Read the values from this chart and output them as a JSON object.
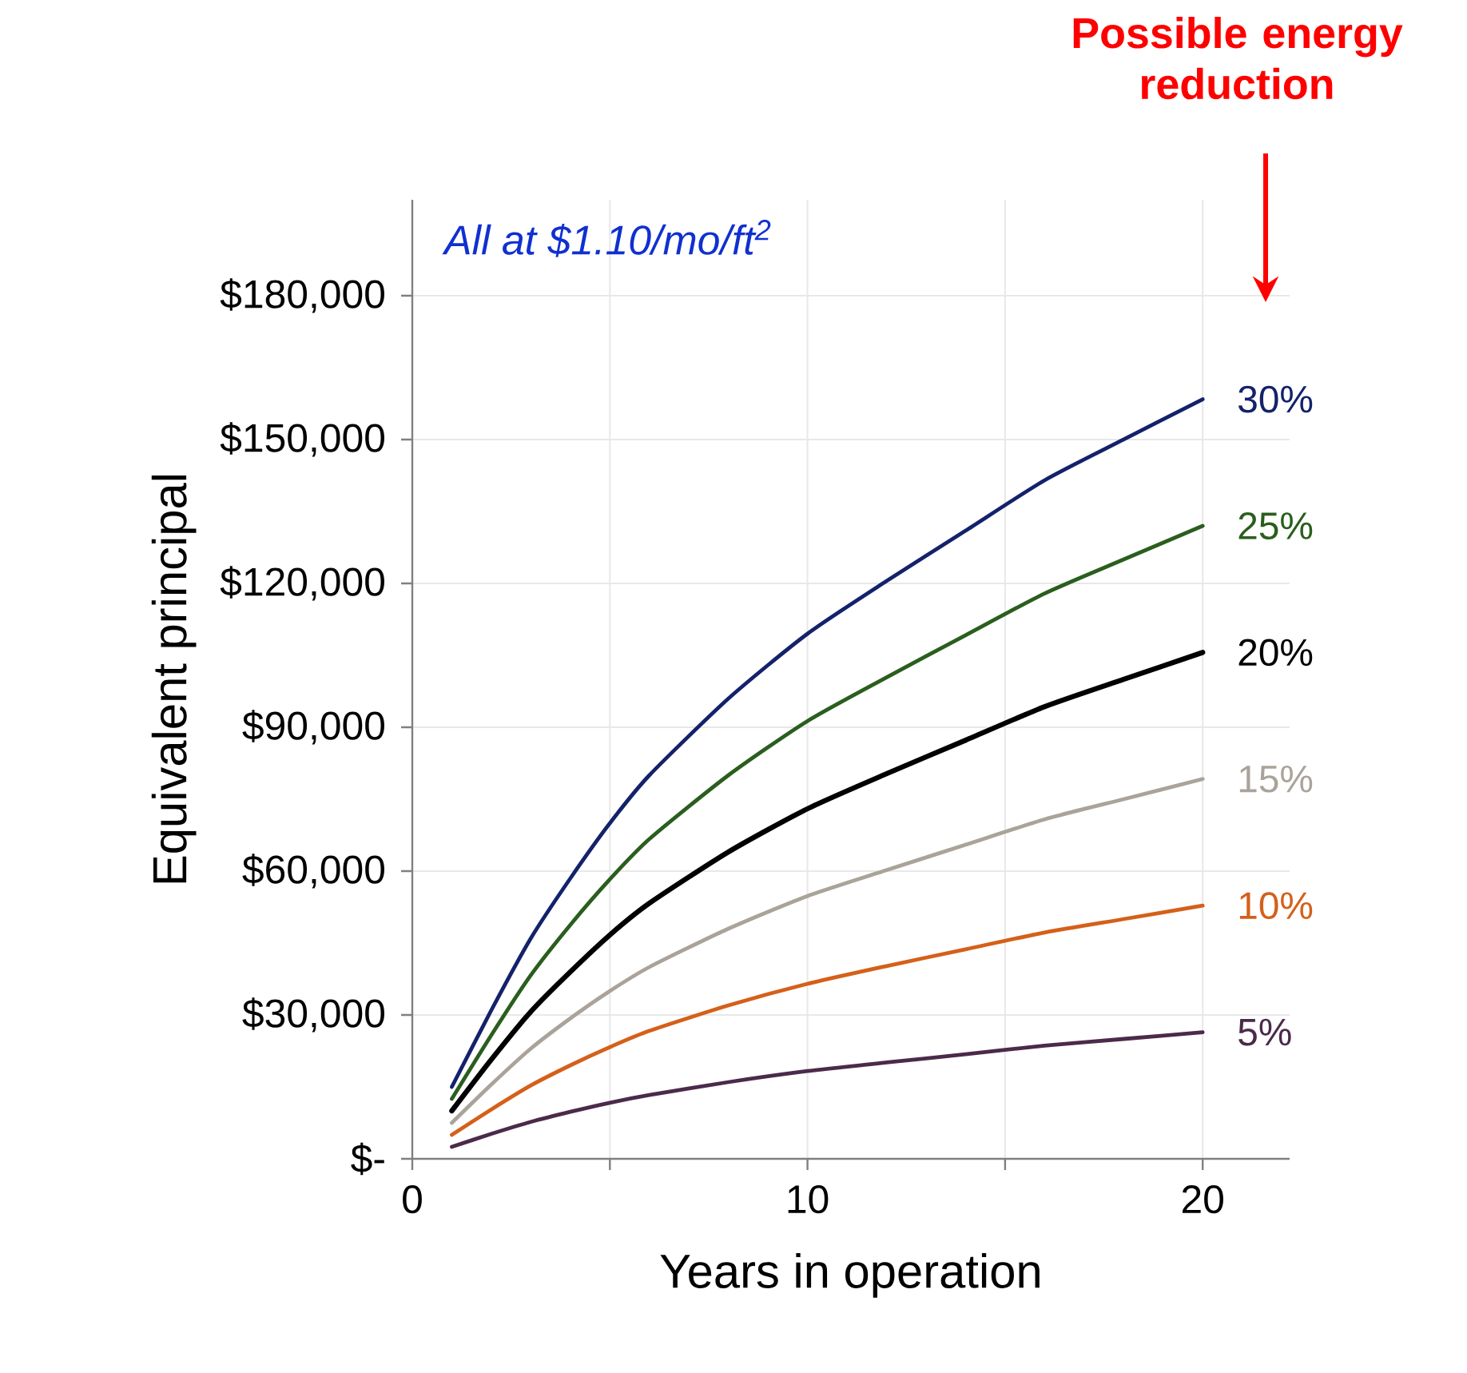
{
  "chart_data": {
    "type": "line",
    "xlabel": "Years in operation",
    "ylabel": "Equivalent principal",
    "xlim": [
      0,
      22.2
    ],
    "ylim": [
      0,
      200000
    ],
    "xticks": [
      0,
      {
        "value": 5,
        "label": null
      },
      10,
      {
        "value": 15,
        "label": null
      },
      20
    ],
    "yticks": [
      {
        "value": 0,
        "label": "$-"
      },
      {
        "value": 30000,
        "label": "$30,000"
      },
      {
        "value": 60000,
        "label": "$60,000"
      },
      {
        "value": 90000,
        "label": "$90,000"
      },
      {
        "value": 120000,
        "label": "$120,000"
      },
      {
        "value": 150000,
        "label": "$150,000"
      },
      {
        "value": 180000,
        "label": "$180,000"
      }
    ],
    "grid": true,
    "legend": false,
    "marker": "none",
    "line_style": "solid",
    "x": [
      1,
      2,
      3,
      4,
      5,
      6,
      8,
      10,
      12,
      14,
      16,
      18,
      20
    ],
    "series": [
      {
        "name": "30%",
        "color": "#14226b",
        "values": [
          15000,
          31000,
          46000,
          58500,
          70000,
          80000,
          96000,
          109500,
          120500,
          131000,
          141500,
          150000,
          158400
        ]
      },
      {
        "name": "25%",
        "color": "#2a5e1e",
        "values": [
          12500,
          25800,
          38300,
          48800,
          58300,
          66700,
          80000,
          91300,
          100400,
          109200,
          117900,
          125000,
          132000
        ]
      },
      {
        "name": "20%",
        "color": "#000000",
        "values": [
          10000,
          20700,
          30700,
          39000,
          46700,
          53300,
          64000,
          73000,
          80300,
          87300,
          94300,
          100000,
          105600
        ]
      },
      {
        "name": "15%",
        "color": "#aaa39a",
        "values": [
          7500,
          15500,
          23000,
          29300,
          35000,
          40000,
          48000,
          54800,
          60200,
          65500,
          70800,
          75000,
          79200
        ]
      },
      {
        "name": "10%",
        "color": "#d4601a",
        "values": [
          5000,
          10300,
          15300,
          19500,
          23300,
          26700,
          32000,
          36500,
          40200,
          43700,
          47200,
          50000,
          52800
        ]
      },
      {
        "name": "5%",
        "color": "#4b2a4a",
        "values": [
          2500,
          5200,
          7700,
          9800,
          11700,
          13300,
          16000,
          18300,
          20100,
          21800,
          23600,
          25000,
          26400
        ]
      }
    ],
    "annotations": [
      "All at $1.10/mo/ft$^{2}$",
      "Possible energy reduction"
    ]
  }
}
